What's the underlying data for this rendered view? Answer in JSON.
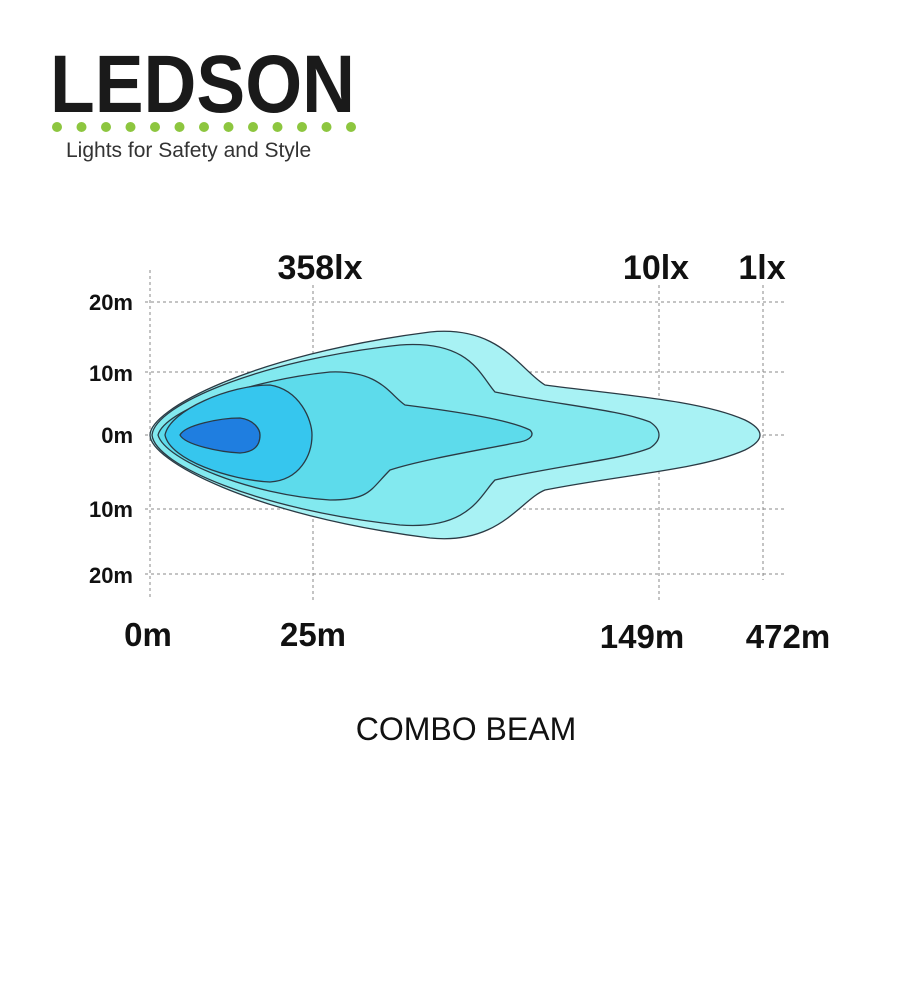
{
  "logo": {
    "brand": "LEDSON",
    "tagline": "Lights for Safety and Style"
  },
  "lux_labels": [
    "358lx",
    "10lx",
    "1lx"
  ],
  "y_labels": [
    "20m",
    "10m",
    "0m",
    "10m",
    "20m"
  ],
  "x_labels": [
    "0m",
    "25m",
    "149m",
    "472m"
  ],
  "caption": "COMBO BEAM"
}
